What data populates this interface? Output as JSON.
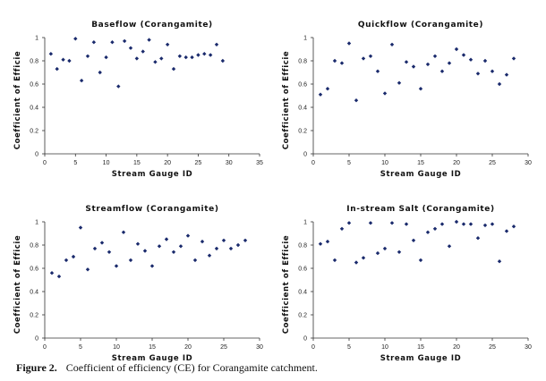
{
  "caption": {
    "label": "Figure 2.",
    "text": "Coefficient of efficiency (CE) for Corangamite catchment."
  },
  "colors": {
    "marker": "#1a2a6c",
    "axis": "#333333"
  },
  "chart_data": [
    {
      "type": "scatter",
      "title": "Baseflow (Corangamite)",
      "xlabel": "Stream Gauge ID",
      "ylabel": "Coefficient of Efficie",
      "xlim": [
        0,
        35
      ],
      "ylim": [
        0,
        1
      ],
      "xticks": [
        0,
        5,
        10,
        15,
        20,
        25,
        30,
        35
      ],
      "yticks": [
        0,
        0.2,
        0.4,
        0.6,
        0.8,
        1
      ],
      "grid": false,
      "x": [
        1,
        2,
        3,
        4,
        5,
        6,
        7,
        8,
        9,
        10,
        11,
        12,
        13,
        14,
        15,
        16,
        17,
        18,
        19,
        20,
        21,
        22,
        23,
        24,
        25,
        26,
        27,
        28,
        29
      ],
      "y": [
        0.86,
        0.73,
        0.81,
        0.8,
        0.99,
        0.63,
        0.84,
        0.96,
        0.7,
        0.83,
        0.96,
        0.58,
        0.97,
        0.91,
        0.82,
        0.88,
        0.98,
        0.79,
        0.82,
        0.94,
        0.73,
        0.84,
        0.83,
        0.83,
        0.85,
        0.86,
        0.85,
        0.94,
        0.8
      ]
    },
    {
      "type": "scatter",
      "title": "Quickflow (Corangamite)",
      "xlabel": "Stream Gauge ID",
      "ylabel": "Coefficient of Efficie",
      "xlim": [
        0,
        30
      ],
      "ylim": [
        0,
        1
      ],
      "xticks": [
        0,
        5,
        10,
        15,
        20,
        25,
        30
      ],
      "yticks": [
        0,
        0.2,
        0.4,
        0.6,
        0.8,
        1
      ],
      "grid": false,
      "x": [
        1,
        2,
        3,
        4,
        5,
        6,
        7,
        8,
        9,
        10,
        11,
        12,
        13,
        14,
        15,
        16,
        17,
        18,
        19,
        20,
        21,
        22,
        23,
        24,
        25,
        26,
        27,
        28
      ],
      "y": [
        0.51,
        0.56,
        0.8,
        0.78,
        0.95,
        0.46,
        0.82,
        0.84,
        0.71,
        0.52,
        0.94,
        0.61,
        0.79,
        0.75,
        0.56,
        0.77,
        0.84,
        0.71,
        0.78,
        0.9,
        0.85,
        0.81,
        0.69,
        0.8,
        0.71,
        0.6,
        0.68,
        0.82
      ]
    },
    {
      "type": "scatter",
      "title": "Streamflow (Corangamite)",
      "xlabel": "Stream Gauge ID",
      "ylabel": "Coefficient of Efficie",
      "xlim": [
        0,
        30
      ],
      "ylim": [
        0,
        1
      ],
      "xticks": [
        0,
        5,
        10,
        15,
        20,
        25,
        30
      ],
      "yticks": [
        0,
        0.2,
        0.4,
        0.6,
        0.8,
        1
      ],
      "grid": false,
      "x": [
        1,
        2,
        3,
        4,
        5,
        6,
        7,
        8,
        9,
        10,
        11,
        12,
        13,
        14,
        15,
        16,
        17,
        18,
        19,
        20,
        21,
        22,
        23,
        24,
        25,
        26,
        27,
        28
      ],
      "y": [
        0.56,
        0.53,
        0.67,
        0.7,
        0.95,
        0.59,
        0.77,
        0.82,
        0.74,
        0.62,
        0.91,
        0.67,
        0.81,
        0.75,
        0.62,
        0.79,
        0.85,
        0.74,
        0.79,
        0.88,
        0.67,
        0.83,
        0.71,
        0.77,
        0.84,
        0.77,
        0.8,
        0.84
      ]
    },
    {
      "type": "scatter",
      "title": "In-stream Salt (Corangamite)",
      "xlabel": "Stream Gauge ID",
      "ylabel": "Coefficient of Efficie",
      "xlim": [
        0,
        30
      ],
      "ylim": [
        0,
        1
      ],
      "xticks": [
        0,
        5,
        10,
        15,
        20,
        25,
        30
      ],
      "yticks": [
        0,
        0.2,
        0.4,
        0.6,
        0.8,
        1
      ],
      "grid": false,
      "x": [
        1,
        2,
        3,
        4,
        5,
        6,
        7,
        8,
        9,
        10,
        11,
        12,
        13,
        14,
        15,
        16,
        17,
        18,
        19,
        20,
        21,
        22,
        23,
        24,
        25,
        26,
        27,
        28
      ],
      "y": [
        0.81,
        0.83,
        0.67,
        0.94,
        0.99,
        0.65,
        0.69,
        0.99,
        0.73,
        0.77,
        0.99,
        0.74,
        0.98,
        0.84,
        0.67,
        0.91,
        0.94,
        0.98,
        0.79,
        1.0,
        0.98,
        0.98,
        0.86,
        0.97,
        0.98,
        0.66,
        0.92,
        0.96
      ]
    }
  ]
}
